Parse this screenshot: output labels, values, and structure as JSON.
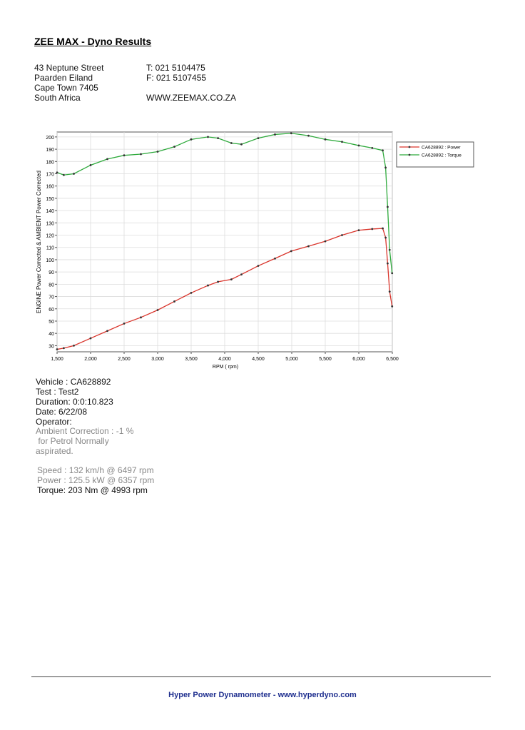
{
  "header": {
    "title": "ZEE MAX - Dyno Results",
    "address": [
      "43 Neptune Street",
      "Paarden Eiland",
      "Cape Town 7405",
      "South Africa"
    ],
    "contact": [
      "T: 021 5104475",
      "F: 021 5107455"
    ],
    "website": "WWW.ZEEMAX.CO.ZA"
  },
  "chart_data": {
    "type": "line",
    "x_label": "RPM ( rpm)",
    "y_label": "ENGINE Power Corrected & AMBIENT Power Corrected",
    "x": [
      1500,
      1600,
      1750,
      2000,
      2250,
      2500,
      2750,
      3000,
      3250,
      3500,
      3750,
      3900,
      4100,
      4250,
      4500,
      4750,
      4993,
      5250,
      5500,
      5750,
      6000,
      6200,
      6357,
      6400,
      6430,
      6460,
      6497
    ],
    "series": [
      {
        "name": "CA628892 : Power",
        "color": "#d9342b",
        "values": [
          27,
          28,
          30,
          36,
          42,
          48,
          53,
          59,
          66,
          73,
          79,
          82,
          84,
          88,
          95,
          101,
          107,
          111,
          115,
          120,
          124,
          125,
          125.5,
          118,
          97,
          74,
          62
        ]
      },
      {
        "name": "CA628892 : Torque",
        "color": "#2eaa3c",
        "values": [
          171,
          169,
          170,
          177,
          182,
          185,
          186,
          188,
          192,
          198,
          200,
          199,
          195,
          194,
          199,
          202,
          203,
          201,
          198,
          196,
          193,
          191,
          189,
          175,
          143,
          108,
          89
        ]
      }
    ],
    "xlim": [
      1500,
      6500
    ],
    "xticks": [
      {
        "value": 1500,
        "label": "1,500"
      },
      {
        "value": 2000,
        "label": "2,000"
      },
      {
        "value": 2500,
        "label": "2,500"
      },
      {
        "value": 3000,
        "label": "3,000"
      },
      {
        "value": 3500,
        "label": "3,500"
      },
      {
        "value": 4000,
        "label": "4,000"
      },
      {
        "value": 4500,
        "label": "4,500"
      },
      {
        "value": 5000,
        "label": "5,000"
      },
      {
        "value": 5500,
        "label": "5,500"
      },
      {
        "value": 6000,
        "label": "6,000"
      },
      {
        "value": 6500,
        "label": "6,500"
      }
    ],
    "ylim": [
      25,
      204
    ],
    "yticks": [
      30,
      40,
      50,
      60,
      70,
      80,
      90,
      100,
      110,
      120,
      130,
      140,
      150,
      160,
      170,
      180,
      190,
      200
    ],
    "grid": true
  },
  "details": {
    "lines": [
      "Vehicle : CA628892",
      "Test   : Test2",
      "Duration: 0:0:10.823",
      "Date:  6/22/08",
      "Operator:"
    ],
    "correction": [
      "Ambient Correction : -1 %",
      " for Petrol Normally",
      "aspirated."
    ],
    "results": [
      "Speed : 132 km/h @ 6497 rpm",
      "Power : 125.5 kW @ 6357 rpm",
      "Torque: 203 Nm @ 4993 rpm"
    ]
  },
  "footer": "Hyper Power Dynamometer  -  www.hyperdyno.com"
}
